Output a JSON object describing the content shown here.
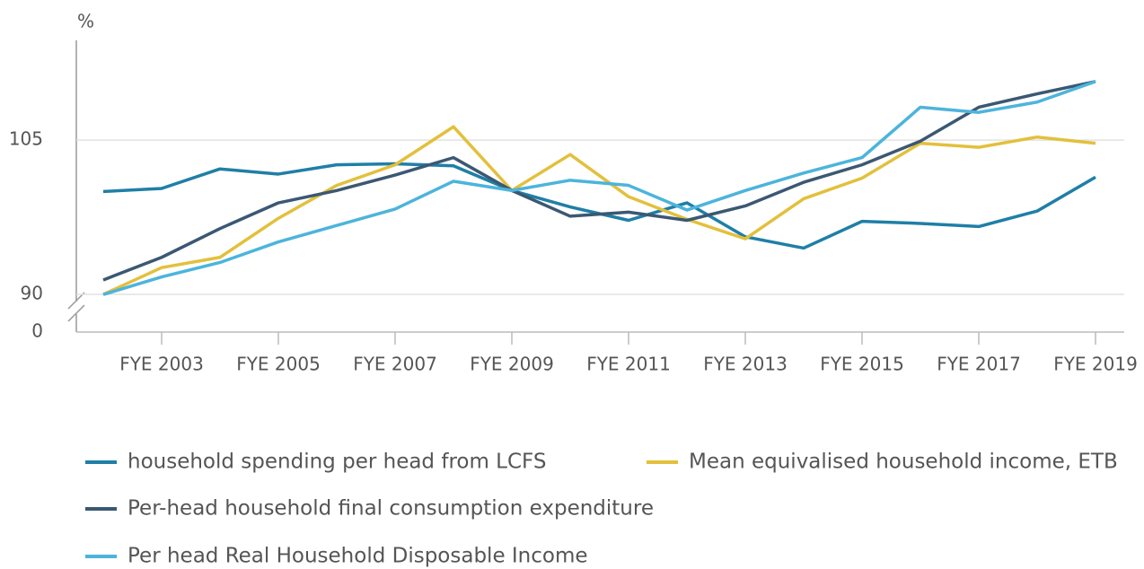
{
  "chart_data": {
    "type": "line",
    "y_label": "%",
    "categories": [
      null,
      "FYE 2003",
      null,
      "FYE 2005",
      null,
      "FYE 2007",
      null,
      "FYE 2009",
      null,
      "FYE 2011",
      null,
      "FYE 2013",
      null,
      "FYE 2015",
      null,
      "FYE 2017",
      null,
      "FYE 2019"
    ],
    "series": [
      {
        "name": "household spending per head from LCFS",
        "color": "#1f7fa6",
        "values": [
          100.0,
          100.3,
          102.2,
          101.7,
          102.6,
          102.7,
          102.5,
          100.1,
          98.5,
          97.2,
          98.9,
          95.6,
          94.5,
          97.1,
          96.9,
          96.6,
          98.1,
          101.4
        ]
      },
      {
        "name": "Mean equivalised household income, ETB",
        "color": "#e3c03c",
        "values": [
          90.0,
          92.6,
          93.6,
          97.4,
          100.6,
          102.6,
          106.3,
          100.1,
          103.6,
          99.5,
          97.3,
          95.4,
          99.3,
          101.3,
          104.7,
          104.3,
          105.3,
          104.7
        ]
      },
      {
        "name": "Per-head household final consumption expenditure",
        "color": "#3b5873",
        "values": [
          91.4,
          93.6,
          96.4,
          98.9,
          100.1,
          101.6,
          103.3,
          100.1,
          97.6,
          98.0,
          97.2,
          98.6,
          100.9,
          102.6,
          104.9,
          108.2,
          109.5,
          110.7
        ]
      },
      {
        "name": "Per head Real Household Disposable Income",
        "color": "#4cb4dc",
        "values": [
          89.5,
          91.7,
          93.1,
          95.1,
          96.7,
          98.3,
          101.0,
          100.1,
          101.1,
          100.6,
          98.2,
          100.1,
          101.8,
          103.3,
          108.2,
          107.7,
          108.7,
          110.7
        ]
      }
    ],
    "ylim": [
      0,
      114.7
    ],
    "y_break": [
      0,
      90
    ],
    "yticks": [
      0,
      90,
      105
    ],
    "grid": true
  }
}
